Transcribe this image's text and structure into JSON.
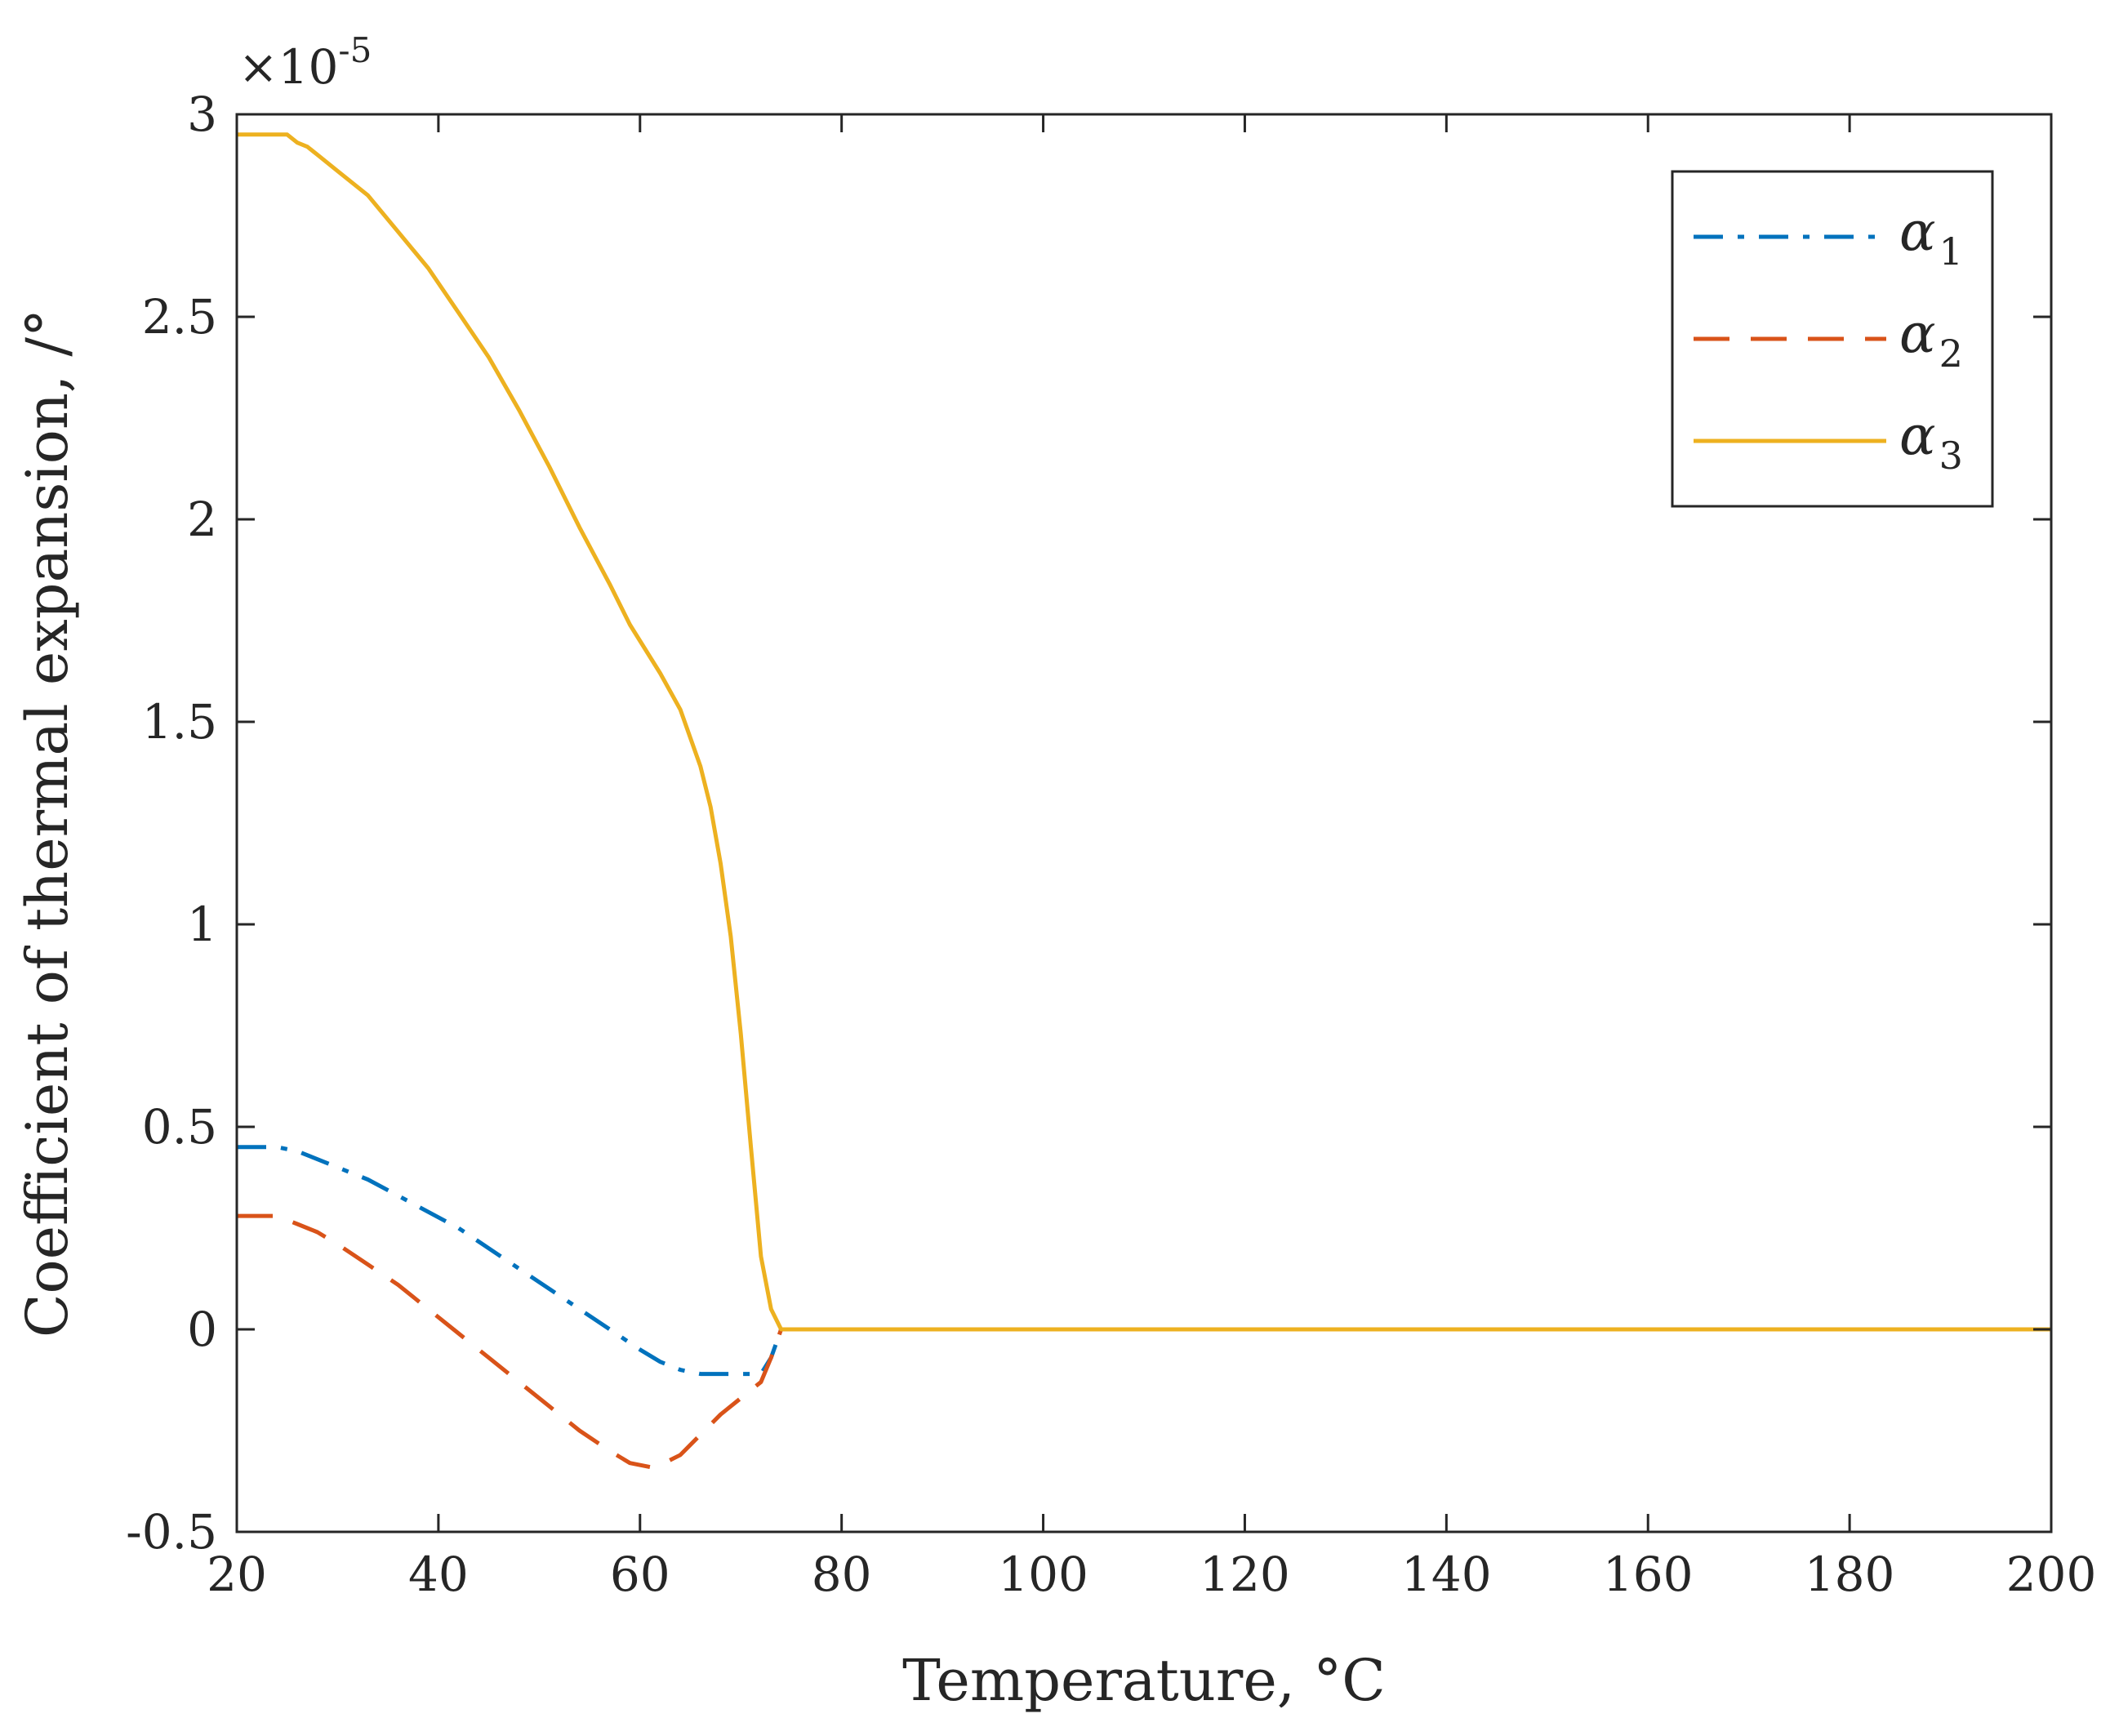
{
  "chart_data": {
    "type": "line",
    "title": "",
    "xlabel": "Temperature, °C",
    "ylabel": "Coefficient of thermal expansion, /°",
    "y_exponent_label": "×10",
    "y_exponent_power": "-5",
    "xlim": [
      20,
      200
    ],
    "ylim": [
      -0.5,
      3
    ],
    "y_multiplier": 1e-05,
    "x_ticks": [
      20,
      40,
      60,
      80,
      100,
      120,
      140,
      160,
      180,
      200
    ],
    "x_tick_labels": [
      "20",
      "40",
      "60",
      "80",
      "100",
      "120",
      "140",
      "160",
      "180",
      "200"
    ],
    "y_ticks": [
      -0.5,
      0,
      0.5,
      1,
      1.5,
      2,
      2.5,
      3
    ],
    "y_tick_labels": [
      "-0.5",
      "0",
      "0.5",
      "1",
      "1.5",
      "2",
      "2.5",
      "3"
    ],
    "grid": false,
    "legend_position": "top-right",
    "series": [
      {
        "name": "α",
        "subscript": "1",
        "color": "#0072BD",
        "dash": "dashdot",
        "x": [
          20,
          24,
          26,
          28,
          30,
          33,
          36,
          39,
          42,
          45,
          48,
          51,
          54,
          57,
          60,
          62,
          64,
          66,
          68,
          70,
          72,
          73,
          74,
          76,
          80,
          100,
          120,
          140,
          160,
          180,
          200
        ],
        "y": [
          0.45,
          0.45,
          0.44,
          0.42,
          0.4,
          0.37,
          0.33,
          0.29,
          0.25,
          0.2,
          0.15,
          0.1,
          0.05,
          0.0,
          -0.05,
          -0.08,
          -0.1,
          -0.11,
          -0.11,
          -0.11,
          -0.11,
          -0.07,
          0.0,
          0.0,
          0.0,
          0.0,
          0.0,
          0.0,
          0.0,
          0.0,
          0.0
        ]
      },
      {
        "name": "α",
        "subscript": "2",
        "color": "#D95319",
        "dash": "dashed",
        "x": [
          20,
          24,
          26,
          28,
          30,
          33,
          36,
          39,
          42,
          45,
          48,
          51,
          54,
          57,
          59,
          61,
          62,
          64,
          66,
          68,
          70,
          72,
          73,
          74,
          76,
          80,
          100,
          120,
          140,
          160,
          180,
          200
        ],
        "y": [
          0.28,
          0.28,
          0.26,
          0.24,
          0.21,
          0.16,
          0.11,
          0.05,
          -0.01,
          -0.07,
          -0.13,
          -0.19,
          -0.25,
          -0.3,
          -0.33,
          -0.34,
          -0.335,
          -0.31,
          -0.26,
          -0.21,
          -0.17,
          -0.13,
          -0.07,
          0.0,
          0.0,
          0.0,
          0.0,
          0.0,
          0.0,
          0.0,
          0.0,
          0.0
        ]
      },
      {
        "name": "α",
        "subscript": "3",
        "color": "#EDB120",
        "dash": "solid",
        "x": [
          20,
          25,
          26,
          27,
          28,
          30,
          33,
          36,
          39,
          42,
          45,
          48,
          51,
          54,
          57,
          59,
          62,
          64,
          66,
          67,
          68,
          69,
          70,
          71,
          72,
          73,
          74,
          76,
          80,
          100,
          120,
          140,
          160,
          180,
          200
        ],
        "y": [
          2.95,
          2.95,
          2.93,
          2.92,
          2.9,
          2.86,
          2.8,
          2.71,
          2.62,
          2.51,
          2.4,
          2.27,
          2.13,
          1.98,
          1.84,
          1.74,
          1.62,
          1.53,
          1.39,
          1.29,
          1.15,
          0.97,
          0.73,
          0.45,
          0.18,
          0.05,
          0.0,
          0.0,
          0.0,
          0.0,
          0.0,
          0.0,
          0.0,
          0.0,
          0.0
        ]
      }
    ]
  }
}
